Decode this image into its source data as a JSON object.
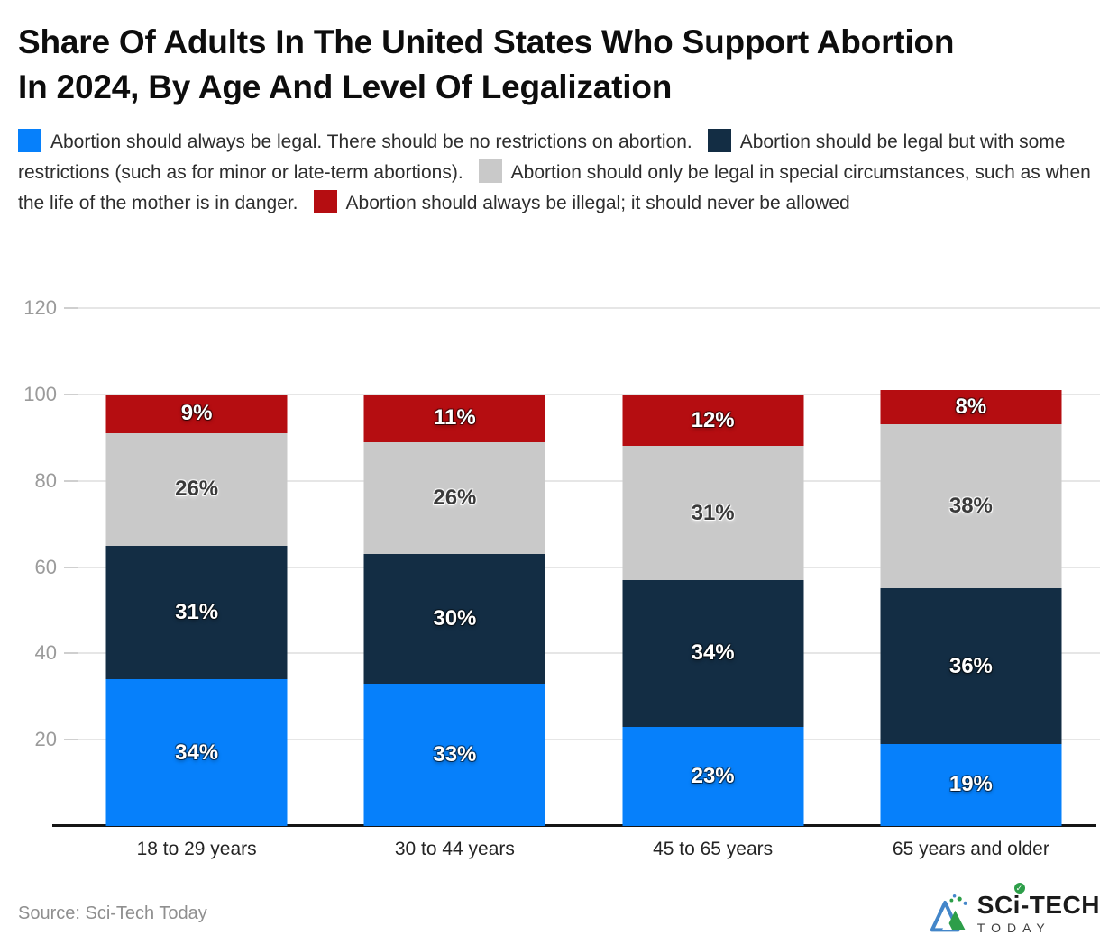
{
  "header": {
    "title_lines": [
      "Share Of Adults In The United States Who Support Abortion",
      "In 2024, By Age And Level Of Legalization"
    ]
  },
  "legend": {
    "items": [
      {
        "label": "Abortion should always be legal. There should be no restrictions on abortion.",
        "color": "#0680fb"
      },
      {
        "label": "Abortion should be legal but with some restrictions (such as for minor or late-term abortions).",
        "color": "#132d44"
      },
      {
        "label": "Abortion should only be legal in special circumstances, such as when the life of the mother is in danger.",
        "color": "#c9c9c9"
      },
      {
        "label": "Abortion should always be illegal; it should never be allowed",
        "color": "#b50d11"
      }
    ]
  },
  "chart_data": {
    "type": "bar",
    "stacked": true,
    "title": "Share Of Adults In The United States Who Support Abortion In 2024, By Age And Level Of Legalization",
    "categories": [
      "18 to 29 years",
      "30 to 44 years",
      "45 to 65 years",
      "65 years and older"
    ],
    "series": [
      {
        "name": "Abortion should always be legal. There should be no restrictions on abortion.",
        "color": "#0680fb",
        "values": [
          34,
          33,
          23,
          19
        ],
        "label_color": "#ffffff",
        "label_halo": "dark"
      },
      {
        "name": "Abortion should be legal but with some restrictions (such as for minor or late-term abortions).",
        "color": "#132d44",
        "values": [
          31,
          30,
          34,
          36
        ],
        "label_color": "#ffffff",
        "label_halo": "dark"
      },
      {
        "name": "Abortion should only be legal in special circumstances, such as when the life of the mother is in danger.",
        "color": "#c9c9c9",
        "values": [
          26,
          26,
          31,
          38
        ],
        "label_color": "#3a3a3a",
        "label_halo": "light"
      },
      {
        "name": "Abortion should always be illegal; it should never be allowed",
        "color": "#b50d11",
        "values": [
          9,
          11,
          12,
          8
        ],
        "label_color": "#ffffff",
        "label_halo": "dark"
      }
    ],
    "value_suffix": "%",
    "yticks": [
      20,
      40,
      60,
      80,
      100,
      120
    ],
    "ylim": [
      0,
      120
    ],
    "grid": true,
    "legend_position": "top",
    "xlabel": "",
    "ylabel": ""
  },
  "footer": {
    "source": "Source: Sci-Tech Today",
    "logo": {
      "brand_prefix": "SC",
      "brand_i": "i",
      "brand_suffix": "-TECH",
      "check": "✓",
      "subtitle": "TODAY"
    }
  }
}
